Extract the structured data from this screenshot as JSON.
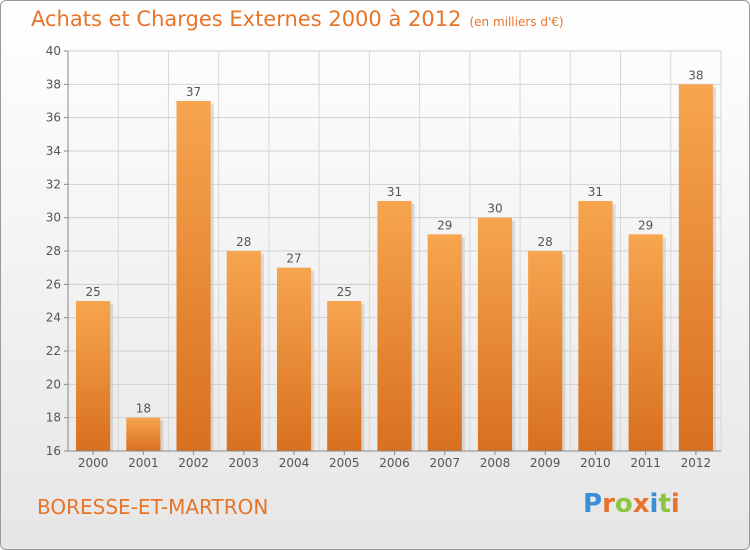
{
  "header": {
    "title": "Achats et Charges Externes 2000 à 2012",
    "subtitle": "(en milliers d'€)"
  },
  "footer": {
    "commune": "BORESSE-ET-MARTRON",
    "logo_text": "Proxiti",
    "logo_letters": [
      {
        "char": "P",
        "color": "#3a8fd8"
      },
      {
        "char": "r",
        "color": "#e8742a"
      },
      {
        "char": "o",
        "color": "#8cc63f"
      },
      {
        "char": "x",
        "color": "#e8742a"
      },
      {
        "char": "i",
        "color": "#3a8fd8"
      },
      {
        "char": "t",
        "color": "#8cc63f"
      },
      {
        "char": "i",
        "color": "#e8742a"
      }
    ]
  },
  "chart_data": {
    "type": "bar",
    "categories": [
      "2000",
      "2001",
      "2002",
      "2003",
      "2004",
      "2005",
      "2006",
      "2007",
      "2008",
      "2009",
      "2010",
      "2011",
      "2012"
    ],
    "values": [
      25,
      18,
      37,
      28,
      27,
      25,
      31,
      29,
      30,
      28,
      31,
      29,
      38
    ],
    "ylim": [
      16,
      40
    ],
    "yticks": [
      16,
      18,
      20,
      22,
      24,
      26,
      28,
      30,
      32,
      34,
      36,
      38,
      40
    ],
    "grid": true,
    "data_labels": true,
    "bar_color_top": "#f7a54f",
    "bar_color_bottom": "#d8701f",
    "title": "Achats et Charges Externes 2000 à 2012",
    "xlabel": "",
    "ylabel": ""
  }
}
